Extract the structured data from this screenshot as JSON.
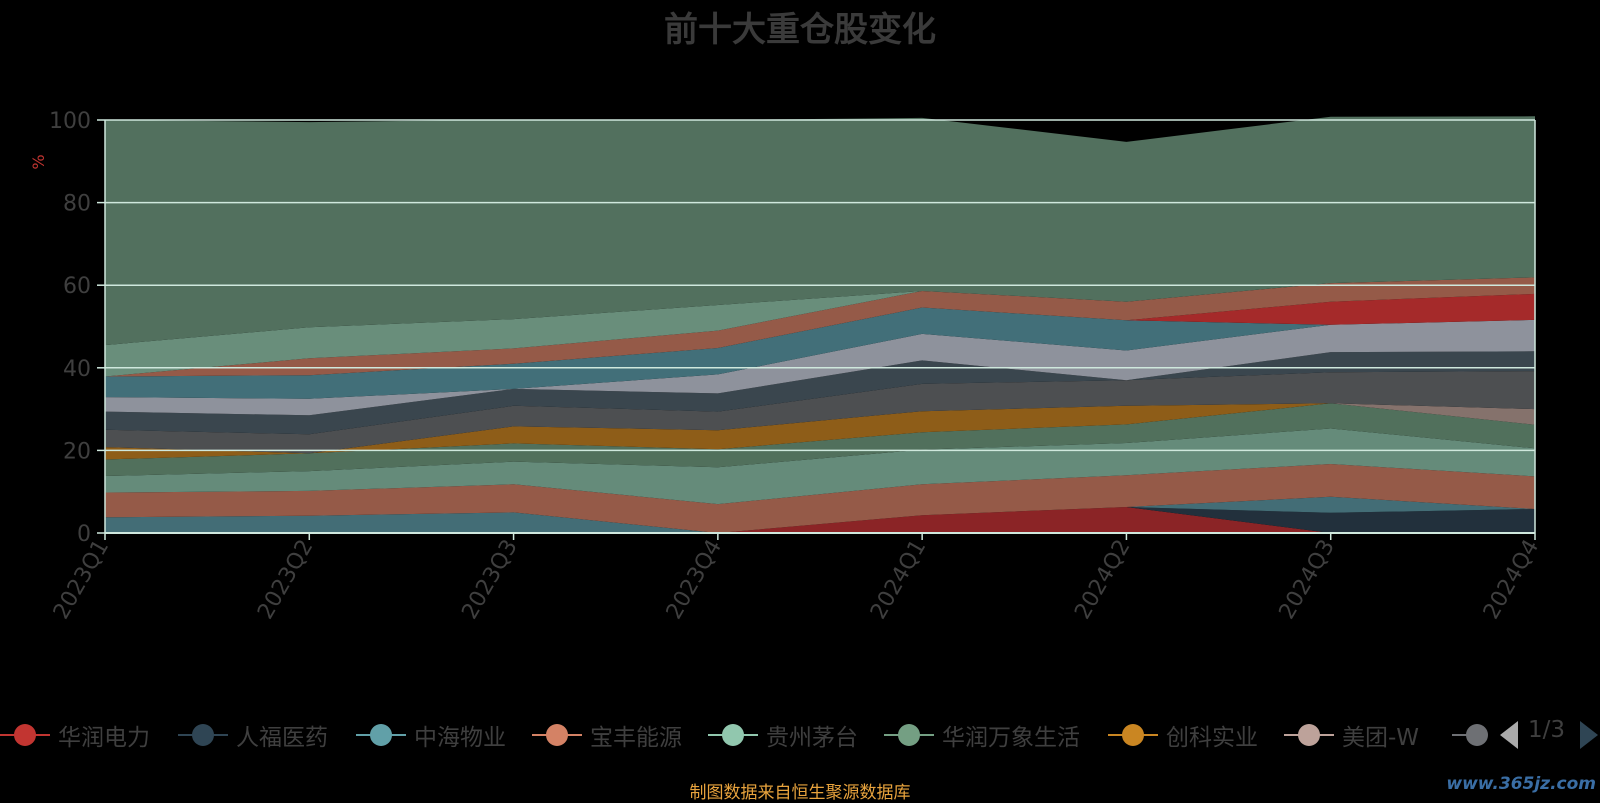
{
  "title": "前十大重仓股变化",
  "source_note": "制图数据来自恒生聚源数据库",
  "watermark": "www.365jz.com",
  "legend": {
    "items": [
      {
        "label": "华润电力",
        "color": "#c23531"
      },
      {
        "label": "人福医药",
        "color": "#2f4554"
      },
      {
        "label": "中海物业",
        "color": "#61a0a8"
      },
      {
        "label": "宝丰能源",
        "color": "#d48265"
      },
      {
        "label": "贵州茅台",
        "color": "#91c7ae"
      },
      {
        "label": "华润万象生活",
        "color": "#749f83"
      },
      {
        "label": "创科实业",
        "color": "#ca8622"
      },
      {
        "label": "美团-W",
        "color": "#bda29a"
      }
    ],
    "partial_color": "#6e7074",
    "page_text": "1/3"
  },
  "chart_data": {
    "type": "area",
    "stacked": true,
    "title": "前十大重仓股变化",
    "ylabel": "%",
    "ylim": [
      0,
      100
    ],
    "yticks": [
      0,
      20,
      40,
      60,
      80,
      100
    ],
    "categories": [
      "2023Q1",
      "2023Q2",
      "2023Q3",
      "2023Q4",
      "2024Q1",
      "2024Q2",
      "2024Q3",
      "2024Q4"
    ],
    "grid": true,
    "series": [
      {
        "name": "华润电力",
        "color": "#8b2426",
        "values": [
          0,
          0,
          0,
          0,
          4.3,
          6.3,
          0,
          0
        ]
      },
      {
        "name": "人福医药",
        "color": "#22303c",
        "values": [
          0,
          0,
          0,
          0,
          0,
          0,
          4.9,
          5.8
        ]
      },
      {
        "name": "中海物业",
        "color": "#436d76",
        "values": [
          3.8,
          4.2,
          5.0,
          0,
          0,
          0,
          3.9,
          0
        ]
      },
      {
        "name": "宝丰能源",
        "color": "#955a48",
        "values": [
          6.0,
          6.0,
          6.8,
          7.0,
          7.5,
          7.7,
          7.9,
          7.9
        ]
      },
      {
        "name": "贵州茅台",
        "color": "#658b7a",
        "values": [
          4.0,
          4.8,
          5.5,
          8.9,
          8.4,
          7.8,
          8.6,
          6.8
        ]
      },
      {
        "name": "华润万象生活",
        "color": "#51705c",
        "values": [
          4.0,
          4.3,
          4.4,
          4.4,
          4.2,
          4.5,
          6.1,
          5.7
        ]
      },
      {
        "name": "创科实业",
        "color": "#8e5d18",
        "values": [
          3.0,
          0,
          4.1,
          4.6,
          5.1,
          4.5,
          0,
          0
        ]
      },
      {
        "name": "美团-W",
        "color": "#85726c",
        "values": [
          0,
          0,
          0,
          0,
          0,
          0,
          0,
          3.8
        ]
      },
      {
        "name": "",
        "color": "#4d4f51",
        "values": [
          4.2,
          4.6,
          5.0,
          4.5,
          6.6,
          6.2,
          7.5,
          9.2
        ]
      },
      {
        "name": "",
        "color": "#3a464e",
        "values": [
          4.4,
          4.6,
          4.1,
          4.4,
          5.7,
          0,
          4.9,
          4.8
        ]
      },
      {
        "name": "",
        "color": "#8e929c",
        "values": [
          3.5,
          4.0,
          0,
          4.6,
          6.4,
          7.2,
          6.6,
          7.6
        ]
      },
      {
        "name": "",
        "color": "#426f79",
        "values": [
          5.0,
          5.7,
          6.1,
          6.4,
          6.4,
          7.3,
          0,
          0
        ]
      },
      {
        "name": "",
        "color": "#a52a2a",
        "values": [
          0,
          0,
          0,
          0,
          0,
          0,
          5.6,
          6.3
        ]
      },
      {
        "name": "",
        "color": "#955a48",
        "values": [
          0,
          4.1,
          3.7,
          4.2,
          4.0,
          4.5,
          4.5,
          4.0
        ]
      },
      {
        "name": "",
        "color": "#698e7b",
        "values": [
          7.6,
          7.5,
          7.1,
          6.2,
          0,
          0,
          0,
          0
        ]
      },
      {
        "name": "",
        "color": "#52705e",
        "values": [
          54.5,
          49.7,
          48.3,
          44.8,
          41.9,
          38.7,
          40.3,
          39.0
        ]
      }
    ]
  }
}
